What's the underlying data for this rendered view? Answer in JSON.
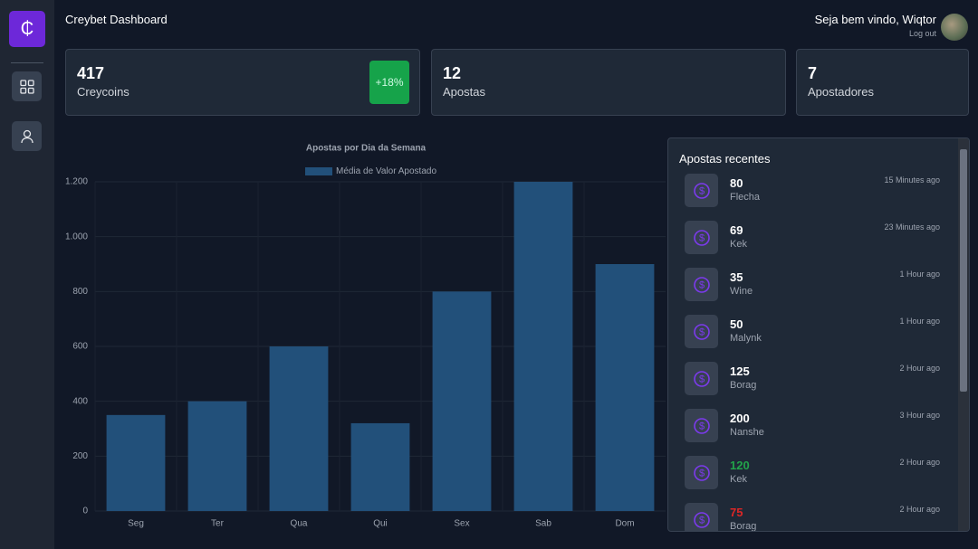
{
  "header": {
    "title": "Creybet Dashboard",
    "welcome": "Seja bem vindo, Wiqtor",
    "logout": "Log out"
  },
  "stats": [
    {
      "value": 417,
      "label": "Creycoins",
      "badge": "+18%"
    },
    {
      "value": 12,
      "label": "Apostas"
    },
    {
      "value": 7,
      "label": "Apostadores"
    }
  ],
  "chart_data": {
    "type": "bar",
    "title": "Apostas por Dia da Semana",
    "series_name": "Média de Valor Apostado",
    "color": "#22507a",
    "categories": [
      "Seg",
      "Ter",
      "Qua",
      "Qui",
      "Sex",
      "Sab",
      "Dom"
    ],
    "values": [
      350,
      400,
      600,
      320,
      800,
      1200,
      900
    ],
    "ylim": [
      0,
      1200
    ],
    "yticks": [
      0,
      200,
      400,
      600,
      800,
      {
        "value": 1000,
        "label": "1.000"
      },
      {
        "value": 1200,
        "label": "1.200"
      }
    ],
    "grid": true
  },
  "recent": {
    "title": "Apostas recentes",
    "items": [
      {
        "amount": 80,
        "user": "Flecha",
        "time": "15 Minutes ago",
        "color": "#ffffff"
      },
      {
        "amount": 69,
        "user": "Kek",
        "time": "23 Minutes ago",
        "color": "#ffffff"
      },
      {
        "amount": 35,
        "user": "Wine",
        "time": "1 Hour ago",
        "color": "#ffffff"
      },
      {
        "amount": 50,
        "user": "Malynk",
        "time": "1 Hour ago",
        "color": "#ffffff"
      },
      {
        "amount": 125,
        "user": "Borag",
        "time": "2 Hour ago",
        "color": "#ffffff"
      },
      {
        "amount": 200,
        "user": "Nanshe",
        "time": "3 Hour ago",
        "color": "#ffffff"
      },
      {
        "amount": 120,
        "user": "Kek",
        "time": "2 Hour ago",
        "color": "#22a34a"
      },
      {
        "amount": 75,
        "user": "Borag",
        "time": "2 Hour ago",
        "color": "#dc2626"
      }
    ]
  }
}
